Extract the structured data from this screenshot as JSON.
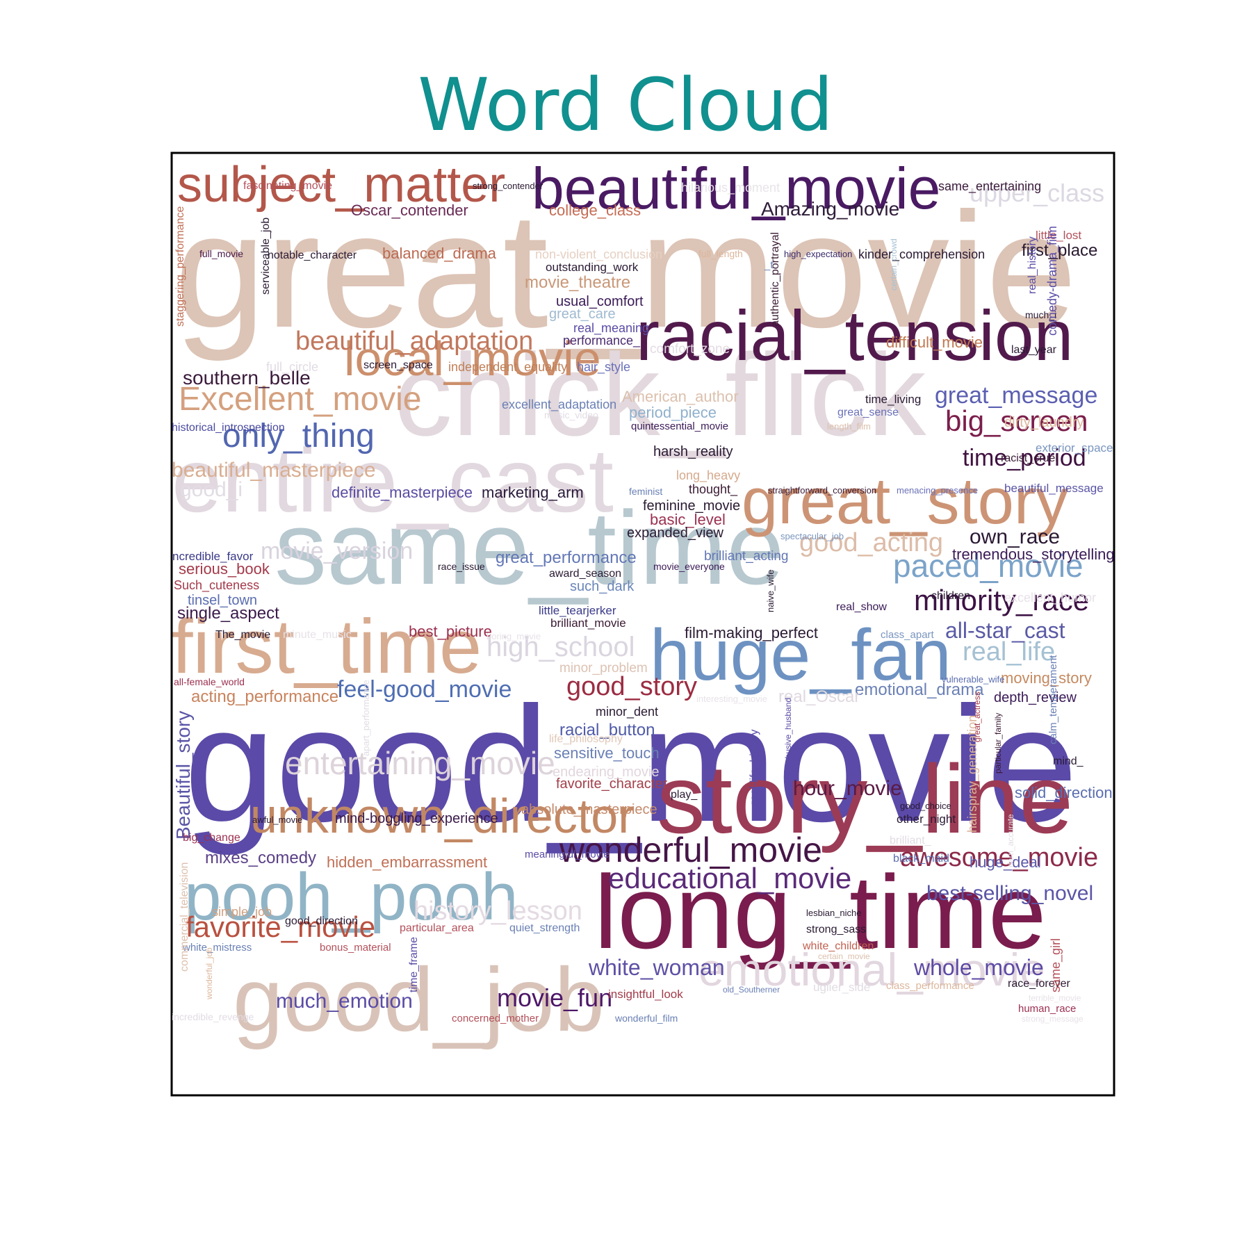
{
  "chart_data": {
    "type": "wordcloud",
    "title": "Word Cloud",
    "title_color": "#10908f",
    "frame_color": "#000000",
    "words": [
      {
        "text": "great_movie",
        "weight": 100,
        "color": "#dcc4b6"
      },
      {
        "text": "good_movie",
        "weight": 98,
        "color": "#5b4aa8"
      },
      {
        "text": "chick_flick",
        "weight": 72,
        "color": "#e2d8dd"
      },
      {
        "text": "same_time",
        "weight": 62,
        "color": "#b7c8cf"
      },
      {
        "text": "long_time",
        "weight": 60,
        "color": "#7a1c4d"
      },
      {
        "text": "story_line",
        "weight": 58,
        "color": "#9c3b55"
      },
      {
        "text": "good_job",
        "weight": 56,
        "color": "#d9c3b8"
      },
      {
        "text": "entire_cast",
        "weight": 55,
        "color": "#e2d8df"
      },
      {
        "text": "first_time",
        "weight": 50,
        "color": "#d7ab90"
      },
      {
        "text": "racial_tension",
        "weight": 48,
        "color": "#521a4c"
      },
      {
        "text": "huge_fan",
        "weight": 48,
        "color": "#6d92c2"
      },
      {
        "text": "great_story",
        "weight": 45,
        "color": "#cc9475"
      },
      {
        "text": "pooh_pooh",
        "weight": 45,
        "color": "#90b4c6"
      },
      {
        "text": "beautiful_movie",
        "weight": 40,
        "color": "#4a1a63"
      },
      {
        "text": "subject_matter",
        "weight": 36,
        "color": "#b3574a"
      },
      {
        "text": "unknown_director",
        "weight": 36,
        "color": "#c28864"
      },
      {
        "text": "local_movie",
        "weight": 35,
        "color": "#cc8f6c"
      },
      {
        "text": "emotional_movie",
        "weight": 33,
        "color": "#e2d6df"
      },
      {
        "text": "entertaining_movie",
        "weight": 26,
        "color": "#ddd3da"
      },
      {
        "text": "wonderful_movie",
        "weight": 26,
        "color": "#451546"
      },
      {
        "text": "educational_movie",
        "weight": 24,
        "color": "#5a2a78"
      },
      {
        "text": "awesome_movie",
        "weight": 23,
        "color": "#8c2a4a"
      },
      {
        "text": "movie_version",
        "weight": 22,
        "color": "#d9d3de"
      },
      {
        "text": "Excellent_movie",
        "weight": 26,
        "color": "#d4a07e"
      },
      {
        "text": "only_thing",
        "weight": 26,
        "color": "#5266b0"
      },
      {
        "text": "beautiful_adaptation",
        "weight": 24,
        "color": "#c1775c"
      },
      {
        "text": "big_screen",
        "weight": 24,
        "color": "#7b1e4b"
      },
      {
        "text": "paced_movie",
        "weight": 26,
        "color": "#7ba3c9"
      },
      {
        "text": "minority_race",
        "weight": 24,
        "color": "#3c1244"
      },
      {
        "text": "good_acting",
        "weight": 23,
        "color": "#dcbca8"
      },
      {
        "text": "high_school",
        "weight": 23,
        "color": "#dad5df"
      },
      {
        "text": "real_life",
        "weight": 22,
        "color": "#a5c1d3"
      },
      {
        "text": "good_story",
        "weight": 22,
        "color": "#9c2c42"
      },
      {
        "text": "favorite_movie",
        "weight": 24,
        "color": "#b9503f"
      },
      {
        "text": "history_lesson",
        "weight": 23,
        "color": "#e3dae2"
      },
      {
        "text": "upper_class",
        "weight": 22,
        "color": "#dcd8e2"
      },
      {
        "text": "time_period",
        "weight": 21,
        "color": "#3f1040"
      },
      {
        "text": "much_emotion",
        "weight": 19,
        "color": "#5a4ca6"
      },
      {
        "text": "white_woman",
        "weight": 19,
        "color": "#5e50a5"
      },
      {
        "text": "movie_fun",
        "weight": 21,
        "color": "#4d1768"
      },
      {
        "text": "whole_movie",
        "weight": 19,
        "color": "#5d4aa4"
      },
      {
        "text": "great_message",
        "weight": 19,
        "color": "#5b5fb1"
      },
      {
        "text": "all-star_cast",
        "weight": 19,
        "color": "#5a5aa6"
      },
      {
        "text": "hour_movie",
        "weight": 18,
        "color": "#5a1a43"
      },
      {
        "text": "own_race",
        "weight": 18,
        "color": "#2a1833"
      },
      {
        "text": "feel-good_movie",
        "weight": 18,
        "color": "#4e6db2"
      },
      {
        "text": "best-selling_novel",
        "weight": 18,
        "color": "#5a55a6"
      },
      {
        "text": "beautiful_masterpiece",
        "weight": 16,
        "color": "#d9ae92"
      },
      {
        "text": "southern_belle",
        "weight": 16,
        "color": "#3a1a3a"
      },
      {
        "text": "Amazing_movie",
        "weight": 15,
        "color": "#2f1d3a"
      },
      {
        "text": "Beautiful_story",
        "weight": 15,
        "color": "#5a55a6"
      },
      {
        "text": "first_place",
        "weight": 14,
        "color": "#2a1a30"
      },
      {
        "text": "emotional_drama",
        "weight": 14,
        "color": "#6a80b5"
      },
      {
        "text": "good_i",
        "weight": 15,
        "color": "#e2dce4"
      },
      {
        "text": "movie_theatre",
        "weight": 14,
        "color": "#c99777"
      },
      {
        "text": "college_class",
        "weight": 13,
        "color": "#c56c54"
      },
      {
        "text": "Oscar_contender",
        "weight": 13,
        "color": "#6a2a55"
      },
      {
        "text": "balanced_drama",
        "weight": 13,
        "color": "#bb6a52"
      },
      {
        "text": "single_aspect",
        "weight": 13,
        "color": "#3a1a4a"
      },
      {
        "text": "acting_performance",
        "weight": 13,
        "color": "#c8835d"
      },
      {
        "text": "real_Oscar",
        "weight": 13,
        "color": "#e0d8e0"
      },
      {
        "text": "moving_story",
        "weight": 12,
        "color": "#c58a60"
      },
      {
        "text": "mixes_comedy",
        "weight": 12,
        "color": "#5a3f86"
      },
      {
        "text": "hidden_embarrassment",
        "weight": 12,
        "color": "#c06f55"
      },
      {
        "text": "solid_direction",
        "weight": 12,
        "color": "#5a6db0"
      },
      {
        "text": "huge_deal",
        "weight": 12,
        "color": "#5a58a8"
      },
      {
        "text": "racial_button",
        "weight": 12,
        "color": "#4f5ba8"
      },
      {
        "text": "sensitive_touch",
        "weight": 12,
        "color": "#6a80b5"
      },
      {
        "text": "tremendous_storytelling",
        "weight": 12,
        "color": "#3a1a56"
      },
      {
        "text": "great_performance",
        "weight": 12,
        "color": "#6277b5"
      },
      {
        "text": "definite_masterpiece",
        "weight": 12,
        "color": "#5a4ba2"
      },
      {
        "text": "marketing_arm",
        "weight": 12,
        "color": "#2a1a3a"
      },
      {
        "text": "harsh_reality",
        "weight": 11,
        "color": "#2a1a33"
      },
      {
        "text": "basic_level",
        "weight": 11,
        "color": "#9b3050"
      },
      {
        "text": "best_picture",
        "weight": 11,
        "color": "#9b3050"
      },
      {
        "text": "film-making_perfect",
        "weight": 11,
        "color": "#2a1a33"
      },
      {
        "text": "serious_book",
        "weight": 11,
        "color": "#a33a4a"
      },
      {
        "text": "difficult_movie",
        "weight": 11,
        "color": "#c07850"
      },
      {
        "text": "favorite_character",
        "weight": 10,
        "color": "#a3404a"
      },
      {
        "text": "absolute_masterpiece",
        "weight": 10,
        "color": "#c58a6a"
      },
      {
        "text": "mind-boggling_experience",
        "weight": 10,
        "color": "#3a1a4a"
      },
      {
        "text": "feminine_movie",
        "weight": 10,
        "color": "#2a1a33"
      },
      {
        "text": "expanded_view",
        "weight": 10,
        "color": "#2a1a33"
      },
      {
        "text": "period_piece",
        "weight": 11,
        "color": "#8fb0cc"
      },
      {
        "text": "tinsel_town",
        "weight": 11,
        "color": "#5a6db0"
      },
      {
        "text": "such_dark",
        "weight": 11,
        "color": "#6a85b8"
      },
      {
        "text": "depth_review",
        "weight": 10,
        "color": "#3a1a56"
      },
      {
        "text": "endearing_movie",
        "weight": 11,
        "color": "#e2d6dd"
      },
      {
        "text": "minor_problem",
        "weight": 10,
        "color": "#ddc2b3"
      },
      {
        "text": "brilliant_acting",
        "weight": 10,
        "color": "#6277b5"
      },
      {
        "text": "great_care",
        "weight": 11,
        "color": "#9fbad0"
      },
      {
        "text": "comfort_zone",
        "weight": 10,
        "color": "#e3dce3"
      },
      {
        "text": "usual_comfort",
        "weight": 10,
        "color": "#3a1a56"
      },
      {
        "text": "real_meaning",
        "weight": 9,
        "color": "#5a4ca6"
      },
      {
        "text": "performance_",
        "weight": 9,
        "color": "#4a2a70"
      },
      {
        "text": "independent_equality",
        "weight": 9,
        "color": "#c08058"
      },
      {
        "text": "hair_style",
        "weight": 9,
        "color": "#6a70b8"
      },
      {
        "text": "screen_space",
        "weight": 8,
        "color": "#2a1a33"
      },
      {
        "text": "full_circle",
        "weight": 9,
        "color": "#e2dce4"
      },
      {
        "text": "American_author",
        "weight": 11,
        "color": "#dcc0ad"
      },
      {
        "text": "excellent_adaptation",
        "weight": 9,
        "color": "#6a80b5"
      },
      {
        "text": "great_sense",
        "weight": 8,
        "color": "#6a70b8"
      },
      {
        "text": "time_living",
        "weight": 8,
        "color": "#2a1a33"
      },
      {
        "text": "dirty_laundry",
        "weight": 10,
        "color": "#dcb69b"
      },
      {
        "text": "exterior_space",
        "weight": 9,
        "color": "#7a95c0"
      },
      {
        "text": "racist_cruel",
        "weight": 8,
        "color": "#3a1a33"
      },
      {
        "text": "beautiful_message",
        "weight": 9,
        "color": "#5a55a6"
      },
      {
        "text": "historical_introspection",
        "weight": 9,
        "color": "#4a4aa0"
      },
      {
        "text": "quintessential_movie",
        "weight": 8,
        "color": "#3a1a56"
      },
      {
        "text": "outstanding_work",
        "weight": 9,
        "color": "#2a1a33"
      },
      {
        "text": "non-violent_conclusion",
        "weight": 10,
        "color": "#e6d0c2"
      },
      {
        "text": "kinder_comprehension",
        "weight": 10,
        "color": "#2a1a33"
      },
      {
        "text": "notable_character",
        "weight": 9,
        "color": "#2a1a33"
      },
      {
        "text": "full_movie",
        "weight": 7,
        "color": "#4a1a4a"
      },
      {
        "text": "full_length",
        "weight": 8,
        "color": "#dcb69b"
      },
      {
        "text": "high_expectation",
        "weight": 7,
        "color": "#3a2a6a"
      },
      {
        "text": "little_lost",
        "weight": 9,
        "color": "#b3505a"
      },
      {
        "text": "much_i",
        "weight": 7,
        "color": "#2a1a33"
      },
      {
        "text": "last_year",
        "weight": 8,
        "color": "#2a1a33"
      },
      {
        "text": "same_entertaining",
        "weight": 10,
        "color": "#3a1a3a"
      },
      {
        "text": "hilarious_moment",
        "weight": 9,
        "color": "#e8e4e8"
      },
      {
        "text": "fascinating_movie",
        "weight": 8,
        "color": "#b3505a"
      },
      {
        "text": "strong_contender",
        "weight": 7,
        "color": "#2a1a33"
      },
      {
        "text": "long_heavy",
        "weight": 9,
        "color": "#d6a98c"
      },
      {
        "text": "thought_",
        "weight": 9,
        "color": "#3a1a33"
      },
      {
        "text": "feminist",
        "weight": 7,
        "color": "#6a80b5"
      },
      {
        "text": "straightforward_conversion",
        "weight": 7,
        "color": "#3a1a33"
      },
      {
        "text": "menacing_presence",
        "weight": 7,
        "color": "#6a70b8"
      },
      {
        "text": "spectacular_job",
        "weight": 7,
        "color": "#7a95c0"
      },
      {
        "text": "award_season",
        "weight": 8,
        "color": "#2a1a33"
      },
      {
        "text": "race_issue",
        "weight": 7,
        "color": "#2a1a33"
      },
      {
        "text": "movie_everyone",
        "weight": 7,
        "color": "#3a1a56"
      },
      {
        "text": "ncredible_favor",
        "weight": 9,
        "color": "#3a3a8a"
      },
      {
        "text": "Such_cuteness",
        "weight": 9,
        "color": "#a33a4a"
      },
      {
        "text": "children",
        "weight": 8,
        "color": "#2a1a33"
      },
      {
        "text": "excellent_humor",
        "weight": 9,
        "color": "#e8e2e8"
      },
      {
        "text": "real_show",
        "weight": 8,
        "color": "#3a1a56"
      },
      {
        "text": "class_apart",
        "weight": 8,
        "color": "#7a95c0"
      },
      {
        "text": "little_tearjerker",
        "weight": 9,
        "color": "#3a3a8a"
      },
      {
        "text": "brilliant_movie",
        "weight": 9,
        "color": "#3a1a33"
      },
      {
        "text": "The_movie",
        "weight": 8,
        "color": "#2a1a33"
      },
      {
        "text": "minute_music",
        "weight": 8,
        "color": "#e8e2e8"
      },
      {
        "text": "boring_movie",
        "weight": 7,
        "color": "#e8e2e8"
      },
      {
        "text": "all-female_world",
        "weight": 7,
        "color": "#9b3050"
      },
      {
        "text": "interesting_movie",
        "weight": 7,
        "color": "#e8e2e8"
      },
      {
        "text": "vulnerable_wife",
        "weight": 7,
        "color": "#5a6db0"
      },
      {
        "text": "minor_dent",
        "weight": 9,
        "color": "#2a1a33"
      },
      {
        "text": "life_philosophy",
        "weight": 8,
        "color": "#e0c8b8"
      },
      {
        "text": "play_",
        "weight": 8,
        "color": "#2a1a33"
      },
      {
        "text": "good_choice",
        "weight": 7,
        "color": "#2a1a33"
      },
      {
        "text": "other_night",
        "weight": 9,
        "color": "#2a1a33"
      },
      {
        "text": "brilliant_",
        "weight": 8,
        "color": "#e2dce4"
      },
      {
        "text": "black_maid",
        "weight": 8,
        "color": "#5a6db0"
      },
      {
        "text": "mind_",
        "weight": 8,
        "color": "#2a1a33"
      },
      {
        "text": "awful_movie",
        "weight": 7,
        "color": "#2a1a33"
      },
      {
        "text": "big_change",
        "weight": 8,
        "color": "#9b3050"
      },
      {
        "text": "meaningful_movie",
        "weight": 8,
        "color": "#5a4ca6"
      },
      {
        "text": "simple_job",
        "weight": 9,
        "color": "#d0a080"
      },
      {
        "text": "good_direction",
        "weight": 9,
        "color": "#2a1a33"
      },
      {
        "text": "particular_area",
        "weight": 9,
        "color": "#b3505a"
      },
      {
        "text": "quiet_strength",
        "weight": 9,
        "color": "#6a80b5"
      },
      {
        "text": "lesbian_niche",
        "weight": 7,
        "color": "#2a1a33"
      },
      {
        "text": "strong_sass",
        "weight": 9,
        "color": "#2a1a33"
      },
      {
        "text": "white_children",
        "weight": 9,
        "color": "#c06050"
      },
      {
        "text": "certain_movie",
        "weight": 7,
        "color": "#dcc0ad"
      },
      {
        "text": "white_mistress",
        "weight": 8,
        "color": "#6a80b5"
      },
      {
        "text": "bonus_material",
        "weight": 9,
        "color": "#b3505a"
      },
      {
        "text": "uglier_side",
        "weight": 9,
        "color": "#e2dce4"
      },
      {
        "text": "old_Southerner",
        "weight": 7,
        "color": "#6a80b5"
      },
      {
        "text": "insightful_look",
        "weight": 9,
        "color": "#a33a4a"
      },
      {
        "text": "class_performance",
        "weight": 8,
        "color": "#dcb69b"
      },
      {
        "text": "race_forever",
        "weight": 9,
        "color": "#2a1a33"
      },
      {
        "text": "terrible_movie",
        "weight": 7,
        "color": "#e8e2e8"
      },
      {
        "text": "human_race",
        "weight": 8,
        "color": "#9b3050"
      },
      {
        "text": "strong_message",
        "weight": 7,
        "color": "#e8e2e8"
      },
      {
        "text": "concerned_mother",
        "weight": 8,
        "color": "#b3505a"
      },
      {
        "text": "wonderful_film",
        "weight": 8,
        "color": "#6a80b5"
      },
      {
        "text": "incredible_revenge",
        "weight": 8,
        "color": "#e2dce4"
      },
      {
        "text": "music_video",
        "weight": 8,
        "color": "#e2dce4"
      },
      {
        "text": "length_film",
        "weight": 7,
        "color": "#dcc0ad"
      },
      {
        "text": "_t",
        "weight": 9,
        "color": "#6a80b5"
      },
      {
        "text": "staggering_performance",
        "weight": 9,
        "color": "#c06f55"
      },
      {
        "text": "serviceable_job",
        "weight": 9,
        "color": "#2a1a33"
      },
      {
        "text": "authentic_portrayal",
        "weight": 9,
        "color": "#3a1a33"
      },
      {
        "text": "certain_crowd",
        "weight": 7,
        "color": "#a5c1d3"
      },
      {
        "text": "real_history",
        "weight": 9,
        "color": "#5a4ca6"
      },
      {
        "text": "comedy-drama_film",
        "weight": 10,
        "color": "#5a4ca6"
      },
      {
        "text": "naive_wife",
        "weight": 7,
        "color": "#2a1a33"
      },
      {
        "text": "calm_temperament",
        "weight": 9,
        "color": "#6a80b5"
      },
      {
        "text": "apart_performance",
        "weight": 7,
        "color": "#e2dce4"
      },
      {
        "text": "real-life_history",
        "weight": 9,
        "color": "#5a4ca6"
      },
      {
        "text": "abusive_husband",
        "weight": 7,
        "color": "#5a4ca6"
      },
      {
        "text": "hairspray_generation",
        "weight": 9,
        "color": "#dcb69b"
      },
      {
        "text": "great_actress",
        "weight": 7,
        "color": "#a33a4a"
      },
      {
        "text": "particular_family",
        "weight": 7,
        "color": "#3a1a33"
      },
      {
        "text": "darn_accurate",
        "weight": 7,
        "color": "#e2dce4"
      },
      {
        "text": "commercial_television",
        "weight": 9,
        "color": "#dcc0ad"
      },
      {
        "text": "wonderful_job",
        "weight": 7,
        "color": "#dcb69b"
      },
      {
        "text": "time_frame",
        "weight": 9,
        "color": "#5a4ca6"
      },
      {
        "text": "same_girl",
        "weight": 10,
        "color": "#b3505a"
      }
    ]
  }
}
